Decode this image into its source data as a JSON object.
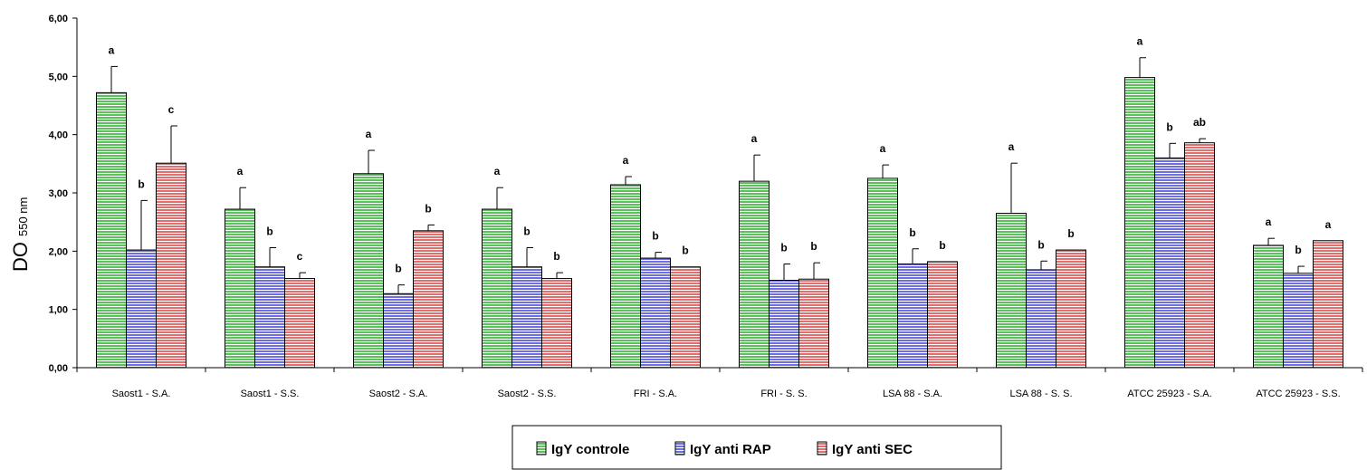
{
  "chart_data": {
    "type": "bar",
    "ylabel": "DO",
    "ylabel_sub": "550 nm",
    "ylim": [
      0,
      6
    ],
    "yticks": [
      "0,00",
      "1,00",
      "2,00",
      "3,00",
      "4,00",
      "5,00",
      "6,00"
    ],
    "categories": [
      "Saost1 - S.A.",
      "Saost1 - S.S.",
      "Saost2 - S.A.",
      "Saost2 - S.S.",
      "FRI - S.A.",
      "FRI - S. S.",
      "LSA 88 - S.A.",
      "LSA 88 - S. S.",
      "ATCC 25923 - S.A.",
      "ATCC 25923 - S.S."
    ],
    "legend_position": "bottom",
    "series": [
      {
        "name": "IgY controle",
        "color": "#5cc05c",
        "values": [
          4.72,
          2.72,
          3.33,
          2.72,
          3.14,
          3.2,
          3.25,
          2.65,
          4.98,
          2.1
        ],
        "errors": [
          0.45,
          0.37,
          0.4,
          0.37,
          0.14,
          0.45,
          0.23,
          0.86,
          0.34,
          0.12
        ],
        "labels": [
          "a",
          "a",
          "a",
          "a",
          "a",
          "a",
          "a",
          "a",
          "a",
          "a"
        ]
      },
      {
        "name": "IgY anti RAP",
        "color": "#6f6fe0",
        "values": [
          2.02,
          1.73,
          1.27,
          1.73,
          1.88,
          1.5,
          1.78,
          1.68,
          3.6,
          1.62
        ],
        "errors": [
          0.85,
          0.33,
          0.15,
          0.33,
          0.1,
          0.28,
          0.26,
          0.15,
          0.25,
          0.12
        ],
        "labels": [
          "b",
          "b",
          "b",
          "b",
          "b",
          "b",
          "b",
          "b",
          "b",
          "b"
        ]
      },
      {
        "name": "IgY anti SEC",
        "color": "#e07070",
        "values": [
          3.51,
          1.53,
          2.35,
          1.53,
          1.73,
          1.52,
          1.82,
          2.02,
          3.86,
          2.18
        ],
        "errors": [
          0.64,
          0.1,
          0.1,
          0.1,
          0.0,
          0.28,
          0.0,
          0.0,
          0.07,
          0.0
        ],
        "labels": [
          "c",
          "c",
          "b",
          "b",
          "b",
          "b",
          "b",
          "b",
          "ab",
          "a"
        ]
      }
    ]
  }
}
